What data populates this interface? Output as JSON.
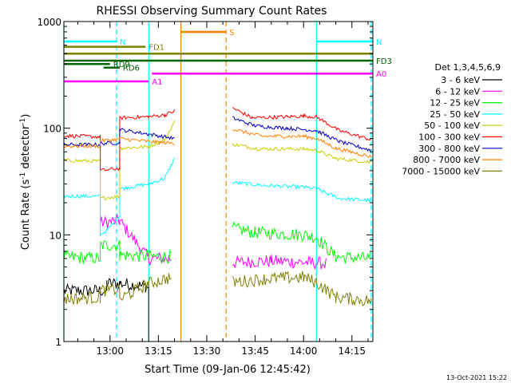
{
  "chart_data": {
    "type": "line",
    "title": "RHESSI Observing Summary Count Rates",
    "xlabel": "Start Time (09-Jan-06 12:45:42)",
    "ylabel_main": "Count Rate (s",
    "ylabel_sup1": "-1",
    "ylabel_mid": " detector",
    "ylabel_sup2": "-1",
    "ylabel_end": ")",
    "y_scale": "log",
    "ylim": [
      1,
      1000
    ],
    "xlim": [
      "12:45:42",
      "14:21:30"
    ],
    "x_tick_labels": [
      "13:00",
      "13:15",
      "13:30",
      "13:45",
      "14:00",
      "14:15"
    ],
    "y_tick_labels": [
      "1",
      "10",
      "100",
      "1000"
    ],
    "timestamp": "13-Oct-2021 15:22",
    "legend": {
      "title": "Det 1,3,4,5,6,9",
      "placement": "right",
      "entries": [
        {
          "label": "3 - 6 keV",
          "color": "#000000"
        },
        {
          "label": "6 - 12 keV",
          "color": "#ff00ff"
        },
        {
          "label": "12 - 25 keV",
          "color": "#00ff00"
        },
        {
          "label": "25 - 50 keV",
          "color": "#00ffff"
        },
        {
          "label": "50 - 100 keV",
          "color": "#cccc00"
        },
        {
          "label": "100 - 300 keV",
          "color": "#ff0000"
        },
        {
          "label": "300 - 800 keV",
          "color": "#0000cc"
        },
        {
          "label": "800 - 7000 keV",
          "color": "#ff8000"
        },
        {
          "label": "7000 - 15000 keV",
          "color": "#808000"
        }
      ]
    },
    "flags": [
      {
        "label": "S",
        "color": "#ff8000",
        "start": "13:22",
        "end": "13:36",
        "y": 800
      },
      {
        "label": "N",
        "color": "#00ffff",
        "start": "12:45:42",
        "end": "13:02",
        "y": 650
      },
      {
        "label": "N",
        "color": "#00ffff",
        "start": "14:04",
        "end": "14:21:30",
        "y": 650
      },
      {
        "label": "FD1",
        "color": "#808000",
        "start": "12:45:42",
        "end": "13:11",
        "y": 580
      },
      {
        "label": "",
        "color": "#808000",
        "start": "12:45:42",
        "end": "14:21:30",
        "y": 500
      },
      {
        "label": "FD3",
        "color": "#006400",
        "start": "12:45:42",
        "end": "14:21:30",
        "y": 430
      },
      {
        "label": "RD9",
        "color": "#006400",
        "start": "12:45:42",
        "end": "13:00",
        "y": 400
      },
      {
        "label": "RD6",
        "color": "#006400",
        "start": "12:58",
        "end": "13:03",
        "y": 370
      },
      {
        "label": "A0",
        "color": "#ff00ff",
        "start": "13:13",
        "end": "14:21:30",
        "y": 325
      },
      {
        "label": "A1",
        "color": "#ff00ff",
        "start": "12:45:42",
        "end": "13:12",
        "y": 275
      }
    ],
    "vertical_markers": [
      {
        "time": "12:45:42",
        "color": "#00ffff",
        "style": "solid"
      },
      {
        "time": "13:02",
        "color": "#00ffff",
        "style": "dashed"
      },
      {
        "time": "13:12",
        "color": "#00ffff",
        "style": "solid"
      },
      {
        "time": "13:22",
        "color": "#ff8000",
        "style": "solid"
      },
      {
        "time": "13:36",
        "color": "#ff8000",
        "style": "dashed"
      },
      {
        "time": "14:04",
        "color": "#00ffff",
        "style": "solid"
      },
      {
        "time": "14:21",
        "color": "#00ffff",
        "style": "dashed"
      }
    ],
    "data_gap": [
      "13:20",
      "13:38"
    ],
    "series": [
      {
        "name": "3 - 6 keV",
        "color": "#000000",
        "points": [
          [
            "12:45:42",
            3
          ],
          [
            "12:59",
            3
          ],
          [
            "12:59",
            3.5
          ],
          [
            "13:03",
            3.5
          ],
          [
            "13:11",
            3.3
          ],
          [
            "13:12",
            3.2
          ],
          [
            "13:12",
            1
          ]
        ]
      },
      {
        "name": "6 - 12 keV",
        "color": "#ff00ff",
        "points": [
          [
            "12:57",
            13
          ],
          [
            "13:03",
            13.5
          ],
          [
            "13:12",
            6
          ],
          [
            "13:19",
            6
          ],
          [
            "13:38",
            5.5
          ],
          [
            "13:50",
            5.7
          ],
          [
            "14:02",
            5.5
          ],
          [
            "14:07",
            5.4
          ]
        ]
      },
      {
        "name": "12 - 25 keV",
        "color": "#00ff00",
        "points": [
          [
            "12:45:42",
            6.2
          ],
          [
            "12:57",
            6
          ],
          [
            "12:57",
            8
          ],
          [
            "13:03",
            8
          ],
          [
            "13:03",
            6.5
          ],
          [
            "13:12",
            6.3
          ],
          [
            "13:19",
            6.2
          ],
          [
            "13:38",
            11.5
          ],
          [
            "13:45",
            10.5
          ],
          [
            "14:00",
            10
          ],
          [
            "14:04",
            9.5
          ],
          [
            "14:10",
            6.2
          ],
          [
            "14:21",
            6
          ]
        ]
      },
      {
        "name": "25 - 50 keV",
        "color": "#00ffff",
        "points": [
          [
            "12:45:42",
            23
          ],
          [
            "12:57",
            23
          ],
          [
            "12:57",
            10
          ],
          [
            "12:59",
            11
          ],
          [
            "13:03",
            15
          ],
          [
            "13:03",
            27
          ],
          [
            "13:12",
            30
          ],
          [
            "13:17",
            34
          ],
          [
            "13:20",
            52
          ],
          [
            "13:38",
            31
          ],
          [
            "13:48",
            29
          ],
          [
            "14:00",
            28
          ],
          [
            "14:04",
            27
          ],
          [
            "14:11",
            22
          ],
          [
            "14:21",
            21
          ]
        ]
      },
      {
        "name": "50 - 100 keV",
        "color": "#cccc00",
        "points": [
          [
            "12:45:42",
            50
          ],
          [
            "12:57",
            49
          ],
          [
            "12:57",
            22
          ],
          [
            "13:03",
            23
          ],
          [
            "13:03",
            65
          ],
          [
            "13:12",
            67
          ],
          [
            "13:17",
            78
          ],
          [
            "13:20",
            115
          ],
          [
            "13:38",
            71
          ],
          [
            "13:46",
            64
          ],
          [
            "14:00",
            64
          ],
          [
            "14:04",
            62
          ],
          [
            "14:10",
            52
          ],
          [
            "14:21",
            48
          ]
        ]
      },
      {
        "name": "100 - 300 keV",
        "color": "#ff0000",
        "points": [
          [
            "12:45:42",
            85
          ],
          [
            "12:57",
            83
          ],
          [
            "12:57",
            40
          ],
          [
            "13:03",
            42
          ],
          [
            "13:03",
            125
          ],
          [
            "13:12",
            128
          ],
          [
            "13:17",
            133
          ],
          [
            "13:20",
            145
          ],
          [
            "13:38",
            155
          ],
          [
            "13:44",
            125
          ],
          [
            "13:55",
            128
          ],
          [
            "14:00",
            130
          ],
          [
            "14:04",
            128
          ],
          [
            "14:11",
            95
          ],
          [
            "14:21",
            78
          ]
        ]
      },
      {
        "name": "300 - 800 keV",
        "color": "#0000cc",
        "points": [
          [
            "12:45:42",
            70
          ],
          [
            "12:57",
            70
          ],
          [
            "12:57",
            72
          ],
          [
            "13:03",
            73
          ],
          [
            "13:03",
            97
          ],
          [
            "13:12",
            88
          ],
          [
            "13:20",
            80
          ],
          [
            "13:38",
            125
          ],
          [
            "13:45",
            105
          ],
          [
            "13:55",
            100
          ],
          [
            "14:04",
            95
          ],
          [
            "14:11",
            75
          ],
          [
            "14:21",
            62
          ]
        ]
      },
      {
        "name": "800 - 7000 keV",
        "color": "#ff8000",
        "points": [
          [
            "12:45:42",
            68
          ],
          [
            "12:57",
            68
          ],
          [
            "12:57",
            76
          ],
          [
            "13:03",
            79
          ],
          [
            "13:03",
            80
          ],
          [
            "13:12",
            75
          ],
          [
            "13:20",
            72
          ],
          [
            "13:38",
            98
          ],
          [
            "13:47",
            84
          ],
          [
            "14:00",
            84
          ],
          [
            "14:04",
            80
          ],
          [
            "14:10",
            65
          ],
          [
            "14:21",
            54
          ]
        ]
      },
      {
        "name": "7000 - 15000 keV",
        "color": "#808000",
        "points": [
          [
            "12:45:42",
            2.5
          ],
          [
            "12:57",
            2.6
          ],
          [
            "12:57",
            3
          ],
          [
            "13:03",
            3.1
          ],
          [
            "13:03",
            2.5
          ],
          [
            "13:12",
            3.5
          ],
          [
            "13:19",
            4
          ],
          [
            "13:38",
            3.6
          ],
          [
            "13:50",
            3.9
          ],
          [
            "14:00",
            4
          ],
          [
            "14:04",
            3.6
          ],
          [
            "14:10",
            2.6
          ],
          [
            "14:21",
            2.4
          ]
        ]
      }
    ]
  }
}
